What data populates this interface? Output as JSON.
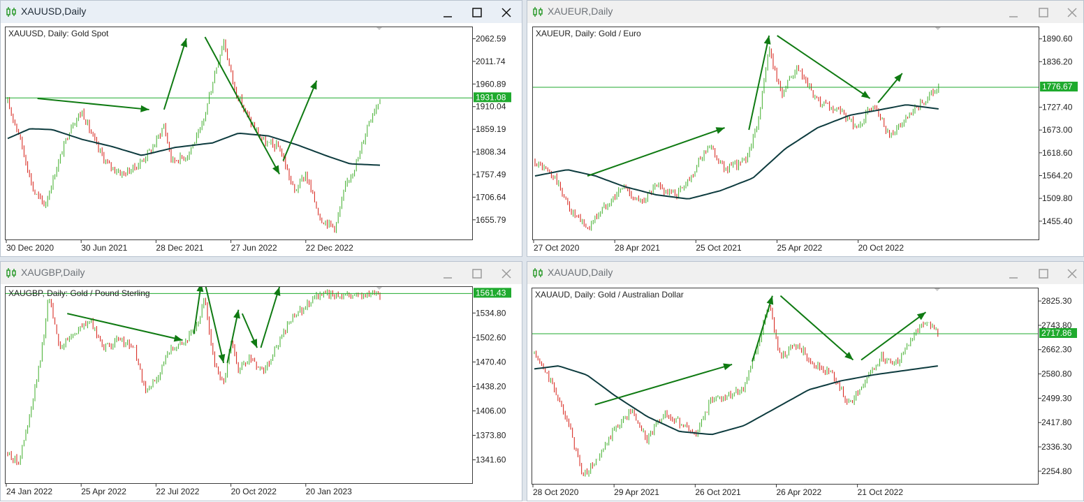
{
  "colors": {
    "bull": "#3fae2a",
    "bear": "#d51b12",
    "ma": "#0d3b3e",
    "price_line": "#1faa2e",
    "price_tag_bg": "#1faa2e",
    "arrow": "#0f7a12"
  },
  "windows": [
    {
      "title": "XAUUSD,Daily",
      "description": "XAUUSD, Daily:  Gold Spot",
      "state": "active",
      "icon": "chart-candles-icon",
      "controls": [
        "minimize-icon",
        "maximize-icon",
        "close-icon"
      ],
      "x_labels": [
        "30 Dec 2020",
        "30 Jun 2021",
        "28 Dec 2021",
        "27 Jun 2022",
        "22 Dec 2022"
      ],
      "price_tag": "1931.08",
      "chart_data": {
        "type": "candlestick",
        "y_ticks": [
          "2062.59",
          "2011.74",
          "1960.89",
          "1910.04",
          "1859.19",
          "1808.34",
          "1757.49",
          "1706.64",
          "1655.79"
        ],
        "ylim": [
          1610,
          2090
        ],
        "current_price": 1931.08,
        "moving_average": true,
        "price_path": [
          [
            0,
            1920
          ],
          [
            0.03,
            1850
          ],
          [
            0.07,
            1720
          ],
          [
            0.1,
            1690
          ],
          [
            0.13,
            1770
          ],
          [
            0.17,
            1870
          ],
          [
            0.2,
            1900
          ],
          [
            0.24,
            1820
          ],
          [
            0.27,
            1780
          ],
          [
            0.31,
            1760
          ],
          [
            0.35,
            1780
          ],
          [
            0.39,
            1820
          ],
          [
            0.42,
            1870
          ],
          [
            0.44,
            1790
          ],
          [
            0.48,
            1800
          ],
          [
            0.52,
            1860
          ],
          [
            0.56,
            2000
          ],
          [
            0.58,
            2060
          ],
          [
            0.61,
            1950
          ],
          [
            0.65,
            1880
          ],
          [
            0.69,
            1830
          ],
          [
            0.73,
            1820
          ],
          [
            0.77,
            1720
          ],
          [
            0.8,
            1760
          ],
          [
            0.84,
            1660
          ],
          [
            0.88,
            1640
          ],
          [
            0.91,
            1740
          ],
          [
            0.94,
            1790
          ],
          [
            0.97,
            1880
          ],
          [
            1.0,
            1931
          ]
        ],
        "ma_path": [
          [
            0,
            1840
          ],
          [
            0.06,
            1862
          ],
          [
            0.12,
            1860
          ],
          [
            0.2,
            1838
          ],
          [
            0.28,
            1822
          ],
          [
            0.36,
            1802
          ],
          [
            0.45,
            1820
          ],
          [
            0.55,
            1830
          ],
          [
            0.62,
            1852
          ],
          [
            0.7,
            1846
          ],
          [
            0.78,
            1825
          ],
          [
            0.86,
            1800
          ],
          [
            0.92,
            1783
          ],
          [
            1.0,
            1780
          ]
        ],
        "arrows": [
          [
            0.08,
            1930,
            0.38,
            1905
          ],
          [
            0.42,
            1905,
            0.48,
            2065
          ],
          [
            0.53,
            2068,
            0.73,
            1760
          ],
          [
            0.74,
            1790,
            0.83,
            1970
          ]
        ]
      }
    },
    {
      "title": "XAUEUR,Daily",
      "description": "XAUEUR, Daily:  Gold / Euro",
      "state": "inactive",
      "icon": "chart-candles-icon",
      "controls": [
        "minimize-icon",
        "maximize-icon",
        "close-icon"
      ],
      "x_labels": [
        "27 Oct 2020",
        "28 Apr 2021",
        "25 Oct 2021",
        "25 Apr 2022",
        "20 Oct 2022"
      ],
      "price_tag": "1776.67",
      "chart_data": {
        "type": "candlestick",
        "y_ticks": [
          "1890.60",
          "1836.20",
          "1727.40",
          "1673.00",
          "1618.60",
          "1564.20",
          "1509.80",
          "1455.40"
        ],
        "ylim": [
          1410,
          1920
        ],
        "current_price": 1776.67,
        "moving_average": true,
        "price_path": [
          [
            0,
            1600
          ],
          [
            0.05,
            1560
          ],
          [
            0.09,
            1480
          ],
          [
            0.13,
            1440
          ],
          [
            0.17,
            1490
          ],
          [
            0.22,
            1540
          ],
          [
            0.26,
            1500
          ],
          [
            0.3,
            1540
          ],
          [
            0.35,
            1520
          ],
          [
            0.39,
            1570
          ],
          [
            0.43,
            1640
          ],
          [
            0.47,
            1580
          ],
          [
            0.52,
            1600
          ],
          [
            0.55,
            1680
          ],
          [
            0.58,
            1870
          ],
          [
            0.61,
            1760
          ],
          [
            0.65,
            1820
          ],
          [
            0.7,
            1740
          ],
          [
            0.75,
            1720
          ],
          [
            0.8,
            1680
          ],
          [
            0.84,
            1740
          ],
          [
            0.88,
            1660
          ],
          [
            0.92,
            1700
          ],
          [
            0.96,
            1740
          ],
          [
            1.0,
            1776
          ]
        ],
        "ma_path": [
          [
            0,
            1565
          ],
          [
            0.08,
            1580
          ],
          [
            0.15,
            1565
          ],
          [
            0.22,
            1540
          ],
          [
            0.3,
            1520
          ],
          [
            0.38,
            1510
          ],
          [
            0.46,
            1530
          ],
          [
            0.54,
            1560
          ],
          [
            0.62,
            1630
          ],
          [
            0.7,
            1680
          ],
          [
            0.78,
            1710
          ],
          [
            0.85,
            1722
          ],
          [
            0.92,
            1735
          ],
          [
            1.0,
            1725
          ]
        ],
        "arrows": [
          [
            0.13,
            1565,
            0.47,
            1680
          ],
          [
            0.53,
            1675,
            0.58,
            1900
          ],
          [
            0.6,
            1900,
            0.83,
            1750
          ],
          [
            0.85,
            1740,
            0.91,
            1810
          ]
        ]
      }
    },
    {
      "title": "XAUGBP,Daily",
      "description": "XAUGBP, Daily:  Gold / Pound Sterling",
      "state": "inactive",
      "icon": "chart-candles-icon",
      "controls": [
        "minimize-icon",
        "maximize-icon",
        "close-icon"
      ],
      "x_labels": [
        "24 Jan 2022",
        "25 Apr 2022",
        "22 Jul 2022",
        "20 Oct 2022",
        "20 Jan 2023"
      ],
      "price_tag": "1561.43",
      "chart_data": {
        "type": "candlestick",
        "y_ticks": [
          "1534.80",
          "1502.60",
          "1470.40",
          "1438.20",
          "1406.00",
          "1373.80",
          "1341.60"
        ],
        "ylim": [
          1310,
          1570
        ],
        "current_price": 1561.43,
        "moving_average": false,
        "price_path": [
          [
            0,
            1350
          ],
          [
            0.03,
            1340
          ],
          [
            0.06,
            1400
          ],
          [
            0.09,
            1480
          ],
          [
            0.11,
            1560
          ],
          [
            0.14,
            1490
          ],
          [
            0.18,
            1510
          ],
          [
            0.22,
            1525
          ],
          [
            0.26,
            1490
          ],
          [
            0.3,
            1500
          ],
          [
            0.34,
            1490
          ],
          [
            0.37,
            1430
          ],
          [
            0.4,
            1450
          ],
          [
            0.44,
            1490
          ],
          [
            0.48,
            1500
          ],
          [
            0.51,
            1520
          ],
          [
            0.53,
            1555
          ],
          [
            0.55,
            1480
          ],
          [
            0.58,
            1440
          ],
          [
            0.6,
            1500
          ],
          [
            0.62,
            1460
          ],
          [
            0.65,
            1475
          ],
          [
            0.69,
            1460
          ],
          [
            0.72,
            1490
          ],
          [
            0.76,
            1525
          ],
          [
            0.8,
            1545
          ],
          [
            0.82,
            1555
          ],
          [
            0.83,
            1560
          ]
        ],
        "arrows": [
          [
            0.16,
            1535,
            0.47,
            1500
          ],
          [
            0.5,
            1508,
            0.52,
            1575
          ],
          [
            0.53,
            1575,
            0.58,
            1470
          ],
          [
            0.59,
            1470,
            0.62,
            1540
          ],
          [
            0.63,
            1535,
            0.67,
            1490
          ],
          [
            0.68,
            1490,
            0.73,
            1570
          ]
        ]
      }
    },
    {
      "title": "XAUAUD,Daily",
      "description": "XAUAUD, Daily:  Gold / Australian Dollar",
      "state": "inactive",
      "icon": "chart-candles-icon",
      "controls": [
        "minimize-icon",
        "maximize-icon",
        "close-icon"
      ],
      "x_labels": [
        "28 Oct 2020",
        "29 Apr 2021",
        "26 Oct 2021",
        "26 Apr 2022",
        "21 Oct 2022"
      ],
      "price_tag": "2717.86",
      "chart_data": {
        "type": "candlestick",
        "y_ticks": [
          "2825.30",
          "2743.80",
          "2662.30",
          "2580.80",
          "2499.30",
          "2417.80",
          "2336.30",
          "2254.80"
        ],
        "ylim": [
          2210,
          2870
        ],
        "current_price": 2717.86,
        "moving_average": true,
        "price_path": [
          [
            0,
            2650
          ],
          [
            0.04,
            2560
          ],
          [
            0.08,
            2440
          ],
          [
            0.12,
            2240
          ],
          [
            0.16,
            2300
          ],
          [
            0.2,
            2400
          ],
          [
            0.24,
            2460
          ],
          [
            0.28,
            2360
          ],
          [
            0.32,
            2450
          ],
          [
            0.36,
            2420
          ],
          [
            0.4,
            2380
          ],
          [
            0.44,
            2500
          ],
          [
            0.48,
            2510
          ],
          [
            0.52,
            2540
          ],
          [
            0.56,
            2700
          ],
          [
            0.58,
            2820
          ],
          [
            0.61,
            2640
          ],
          [
            0.65,
            2680
          ],
          [
            0.7,
            2610
          ],
          [
            0.74,
            2580
          ],
          [
            0.78,
            2480
          ],
          [
            0.82,
            2560
          ],
          [
            0.86,
            2640
          ],
          [
            0.9,
            2620
          ],
          [
            0.94,
            2720
          ],
          [
            0.97,
            2760
          ],
          [
            1.0,
            2718
          ]
        ],
        "ma_path": [
          [
            0,
            2600
          ],
          [
            0.06,
            2610
          ],
          [
            0.13,
            2580
          ],
          [
            0.2,
            2510
          ],
          [
            0.28,
            2440
          ],
          [
            0.36,
            2390
          ],
          [
            0.44,
            2380
          ],
          [
            0.52,
            2410
          ],
          [
            0.6,
            2470
          ],
          [
            0.68,
            2530
          ],
          [
            0.76,
            2560
          ],
          [
            0.84,
            2580
          ],
          [
            0.92,
            2595
          ],
          [
            1.0,
            2610
          ]
        ],
        "arrows": [
          [
            0.15,
            2480,
            0.49,
            2615
          ],
          [
            0.54,
            2625,
            0.59,
            2845
          ],
          [
            0.61,
            2845,
            0.79,
            2630
          ],
          [
            0.81,
            2630,
            0.97,
            2790
          ]
        ]
      }
    }
  ]
}
